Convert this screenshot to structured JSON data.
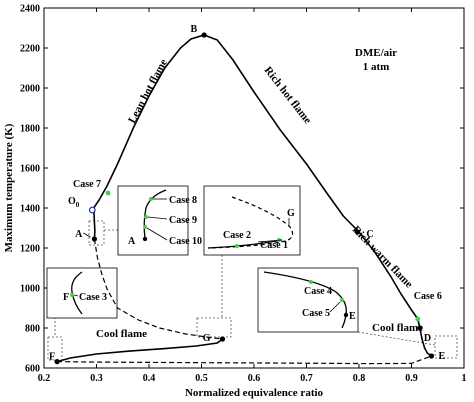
{
  "chart_data": {
    "type": "line",
    "xlabel": "Normalized equivalence ratio",
    "ylabel": "Maximum temperature (K)",
    "xlim": [
      0.2,
      1.0
    ],
    "ylim": [
      600,
      2400
    ],
    "x_ticks": [
      "0.2",
      "0.3",
      "0.4",
      "0.5",
      "0.6",
      "0.7",
      "0.8",
      "0.9",
      "1"
    ],
    "y_ticks": [
      "600",
      "800",
      "1000",
      "1200",
      "1400",
      "1600",
      "1800",
      "2000",
      "2200",
      "2400"
    ],
    "annotation": [
      "DME/air",
      "1 atm"
    ],
    "branch_labels": [
      {
        "text": "Lean hot flame",
        "color": "#c00000"
      },
      {
        "text": "Rich hot flame",
        "color": "#c00000"
      },
      {
        "text": "Rich warm flame",
        "color": "#e08a00"
      },
      {
        "text": "Cool flame",
        "color": "#1c2fa8"
      },
      {
        "text": "Cool flame",
        "color": "#1c2fa8"
      }
    ],
    "series": [
      {
        "style": "solid",
        "points": [
          [
            0.292,
            1390
          ],
          [
            0.305,
            1440
          ],
          [
            0.32,
            1510
          ],
          [
            0.34,
            1620
          ],
          [
            0.37,
            1800
          ],
          [
            0.4,
            1960
          ],
          [
            0.43,
            2100
          ],
          [
            0.46,
            2200
          ],
          [
            0.48,
            2245
          ],
          [
            0.505,
            2265
          ],
          [
            0.53,
            2240
          ],
          [
            0.56,
            2140
          ],
          [
            0.6,
            1980
          ],
          [
            0.65,
            1790
          ],
          [
            0.7,
            1620
          ],
          [
            0.74,
            1470
          ],
          [
            0.77,
            1360
          ],
          [
            0.8,
            1280
          ],
          [
            0.83,
            1180
          ],
          [
            0.86,
            1060
          ],
          [
            0.88,
            970
          ],
          [
            0.9,
            890
          ],
          [
            0.912,
            845
          ],
          [
            0.916,
            800
          ],
          [
            0.92,
            745
          ],
          [
            0.925,
            700
          ],
          [
            0.93,
            675
          ],
          [
            0.938,
            660
          ]
        ]
      },
      {
        "style": "solid",
        "points": [
          [
            0.295,
            1390
          ],
          [
            0.296,
            1330
          ],
          [
            0.297,
            1285
          ],
          [
            0.296,
            1245
          ]
        ]
      },
      {
        "style": "dashed",
        "points": [
          [
            0.296,
            1245
          ],
          [
            0.302,
            1150
          ],
          [
            0.31,
            1070
          ],
          [
            0.32,
            995
          ],
          [
            0.34,
            900
          ],
          [
            0.38,
            840
          ],
          [
            0.42,
            800
          ],
          [
            0.47,
            770
          ],
          [
            0.51,
            755
          ],
          [
            0.54,
            745
          ]
        ]
      },
      {
        "style": "solid",
        "points": [
          [
            0.54,
            745
          ],
          [
            0.53,
            725
          ],
          [
            0.49,
            710
          ],
          [
            0.43,
            697
          ],
          [
            0.36,
            684
          ],
          [
            0.3,
            670
          ],
          [
            0.25,
            650
          ],
          [
            0.225,
            632
          ]
        ]
      },
      {
        "style": "dashed",
        "points": [
          [
            0.225,
            632
          ],
          [
            0.28,
            630
          ],
          [
            0.4,
            628
          ],
          [
            0.55,
            626
          ],
          [
            0.7,
            624
          ],
          [
            0.82,
            622
          ],
          [
            0.9,
            623
          ],
          [
            0.938,
            660
          ]
        ]
      }
    ],
    "points": [
      {
        "label": "O0",
        "x": 0.292,
        "y": 1390,
        "marker": "open-circle"
      },
      {
        "label": "Case 7",
        "x": 0.322,
        "y": 1475,
        "marker": "green"
      },
      {
        "label": "A",
        "x": 0.296,
        "y": 1245,
        "marker": "filled"
      },
      {
        "label": "B",
        "x": 0.505,
        "y": 2265,
        "marker": "filled"
      },
      {
        "label": "C",
        "x": 0.797,
        "y": 1280,
        "marker": "filled"
      },
      {
        "label": "D",
        "x": 0.916,
        "y": 800,
        "marker": "filled"
      },
      {
        "label": "Case 6",
        "x": 0.912,
        "y": 845,
        "marker": "green"
      },
      {
        "label": "E",
        "x": 0.938,
        "y": 660,
        "marker": "filled"
      },
      {
        "label": "F",
        "x": 0.225,
        "y": 632,
        "marker": "filled"
      },
      {
        "label": "G",
        "x": 0.54,
        "y": 745,
        "marker": "filled"
      }
    ],
    "insets": [
      {
        "labels": [
          "Case 8",
          "Case 9",
          "Case 10",
          "A"
        ]
      },
      {
        "labels": [
          "Case 2",
          "Case 1",
          "G"
        ]
      },
      {
        "labels": [
          "F",
          "Case 3"
        ]
      },
      {
        "labels": [
          "Case 4",
          "Case 5",
          "E"
        ]
      }
    ]
  }
}
